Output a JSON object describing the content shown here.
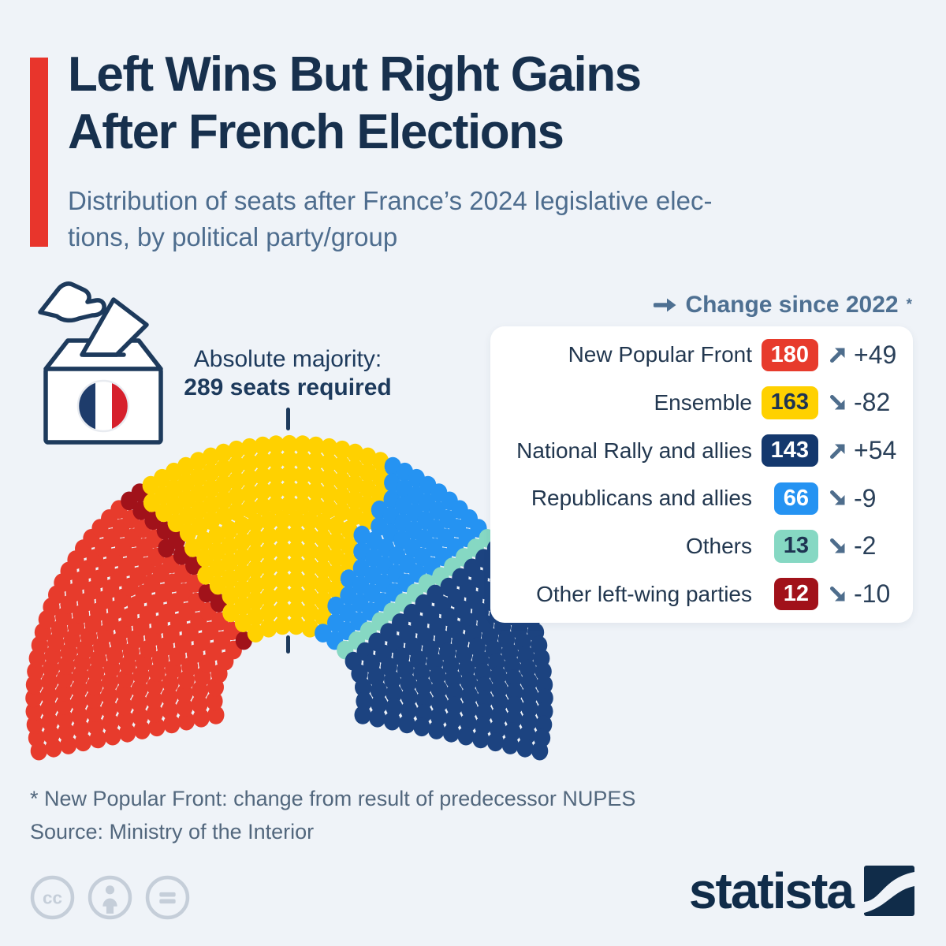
{
  "header": {
    "title_lines": [
      "Left Wins But Right Gains",
      "After French Elections"
    ],
    "subtitle_lines": [
      "Distribution of seats after France’s 2024 legislative elec-",
      "tions, by political party/group"
    ],
    "accent_color": "#e8352c"
  },
  "annotation": {
    "line1": "Absolute majority:",
    "line2": "289 seats required"
  },
  "legend": {
    "header": "Change since 2022",
    "header_note_mark": "*",
    "arrow_color": "#4e6d8c",
    "rows": [
      {
        "label": "New Popular Front",
        "seats": "180",
        "badge_color": "#e73b2c",
        "badge_text_color": "#ffffff",
        "direction": "up",
        "change": "+49"
      },
      {
        "label": "Ensemble",
        "seats": "163",
        "badge_color": "#ffd100",
        "badge_text_color": "#1e3452",
        "direction": "down",
        "change": "-82"
      },
      {
        "label": "National Rally and allies",
        "seats": "143",
        "badge_color": "#14386d",
        "badge_text_color": "#ffffff",
        "direction": "up",
        "change": "+54"
      },
      {
        "label": "Republicans and allies",
        "seats": "66",
        "badge_color": "#2593f2",
        "badge_text_color": "#ffffff",
        "direction": "down",
        "change": "-9"
      },
      {
        "label": "Others",
        "seats": "13",
        "badge_color": "#86d8c3",
        "badge_text_color": "#1e3452",
        "direction": "down",
        "change": "-2"
      },
      {
        "label": "Other left-wing parties",
        "seats": "12",
        "badge_color": "#a1121a",
        "badge_text_color": "#ffffff",
        "direction": "down",
        "change": "-10"
      }
    ]
  },
  "chart_data": {
    "type": "parliament",
    "total_seats": 577,
    "majority_threshold": 289,
    "arc_span_degrees": 203,
    "parties_left_to_right": [
      {
        "name": "New Popular Front",
        "seats": 180,
        "color": "#e73b2c",
        "change_since_2022": 49
      },
      {
        "name": "Other left-wing parties",
        "seats": 12,
        "color": "#a1121a",
        "change_since_2022": -10
      },
      {
        "name": "Ensemble",
        "seats": 163,
        "color": "#ffd100",
        "change_since_2022": -82
      },
      {
        "name": "Republicans and allies",
        "seats": 66,
        "color": "#2593f2",
        "change_since_2022": -9
      },
      {
        "name": "Others",
        "seats": 13,
        "color": "#86d8c3",
        "change_since_2022": -2
      },
      {
        "name": "National Rally and allies",
        "seats": 143,
        "color": "#1c4380",
        "change_since_2022": 54
      }
    ]
  },
  "footer": {
    "footnote": "* New Popular Front: change from result of predecessor NUPES",
    "source": "Source: Ministry of the Interior",
    "logo_text": "statista"
  }
}
